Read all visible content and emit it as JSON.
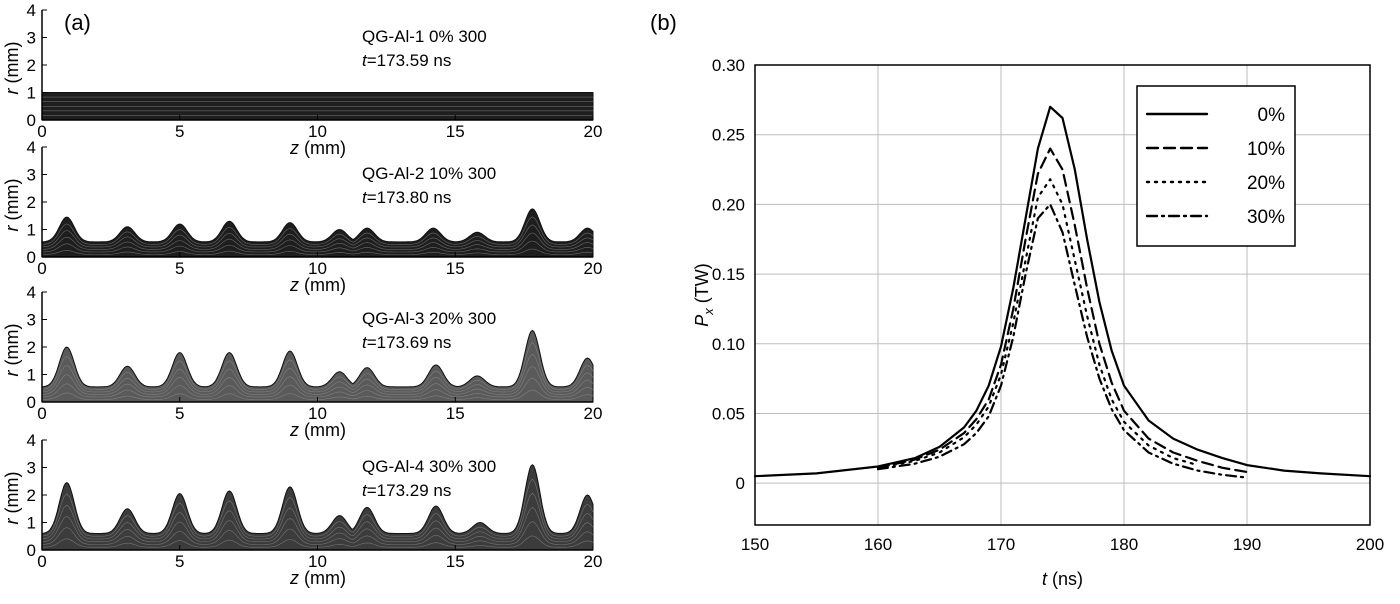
{
  "figure": {
    "panel_a_label": "(a)",
    "panel_b_label": "(b)"
  },
  "chart_data": [
    {
      "type": "area",
      "panel": "(a)",
      "subplots": [
        {
          "run": "QG-Al-1 0% 300",
          "time_prefix": "t",
          "time_value": "=173.59 ns",
          "xlabel_var": "z",
          "xlabel_unit": " (mm)",
          "ylabel_var": "r",
          "ylabel_unit": " (mm)",
          "xlim": [
            0,
            20
          ],
          "ylim": [
            0,
            4
          ],
          "xticks": [
            "0",
            "5",
            "10",
            "15",
            "20"
          ],
          "yticks": [
            "0",
            "1",
            "2",
            "3",
            "4"
          ],
          "fill_color": "#1e1e1e",
          "baseline": 1.0,
          "peaks": []
        },
        {
          "run": "QG-Al-2 10% 300",
          "time_prefix": "t",
          "time_value": "=173.80 ns",
          "xlabel_var": "z",
          "xlabel_unit": " (mm)",
          "ylabel_var": "r",
          "ylabel_unit": " (mm)",
          "xlim": [
            0,
            20
          ],
          "ylim": [
            0,
            4
          ],
          "xticks": [
            "0",
            "5",
            "10",
            "15",
            "20"
          ],
          "yticks": [
            "0",
            "1",
            "2",
            "3",
            "4"
          ],
          "fill_color": "#1e1e1e",
          "baseline": 0.55,
          "peaks": [
            {
              "z": 0.9,
              "r": 1.45
            },
            {
              "z": 3.1,
              "r": 1.1
            },
            {
              "z": 5.0,
              "r": 1.2
            },
            {
              "z": 6.8,
              "r": 1.3
            },
            {
              "z": 9.0,
              "r": 1.25
            },
            {
              "z": 10.8,
              "r": 1.0
            },
            {
              "z": 11.8,
              "r": 1.05
            },
            {
              "z": 14.2,
              "r": 1.05
            },
            {
              "z": 15.8,
              "r": 0.9
            },
            {
              "z": 17.8,
              "r": 1.75
            },
            {
              "z": 19.8,
              "r": 1.05
            }
          ]
        },
        {
          "run": "QG-Al-3 20% 300",
          "time_prefix": "t",
          "time_value": "=173.69 ns",
          "xlabel_var": "z",
          "xlabel_unit": " (mm)",
          "ylabel_var": "r",
          "ylabel_unit": " (mm)",
          "xlim": [
            0,
            20
          ],
          "ylim": [
            0,
            4
          ],
          "xticks": [
            "0",
            "5",
            "10",
            "15",
            "20"
          ],
          "yticks": [
            "0",
            "1",
            "2",
            "3",
            "4"
          ],
          "fill_color": "#5a5a5a",
          "baseline": 0.55,
          "peaks": [
            {
              "z": 0.9,
              "r": 2.0
            },
            {
              "z": 3.1,
              "r": 1.3
            },
            {
              "z": 5.0,
              "r": 1.8
            },
            {
              "z": 6.8,
              "r": 1.8
            },
            {
              "z": 9.0,
              "r": 1.85
            },
            {
              "z": 10.8,
              "r": 1.1
            },
            {
              "z": 11.8,
              "r": 1.25
            },
            {
              "z": 14.3,
              "r": 1.35
            },
            {
              "z": 15.8,
              "r": 0.95
            },
            {
              "z": 17.8,
              "r": 2.6
            },
            {
              "z": 19.8,
              "r": 1.6
            }
          ]
        },
        {
          "run": "QG-Al-4 30% 300",
          "time_prefix": "t",
          "time_value": "=173.29 ns",
          "xlabel_var": "z",
          "xlabel_unit": " (mm)",
          "ylabel_var": "r",
          "ylabel_unit": " (mm)",
          "xlim": [
            0,
            20
          ],
          "ylim": [
            0,
            4
          ],
          "xticks": [
            "0",
            "5",
            "10",
            "15",
            "20"
          ],
          "yticks": [
            "0",
            "1",
            "2",
            "3",
            "4"
          ],
          "fill_color": "#3c3c3c",
          "baseline": 0.6,
          "peaks": [
            {
              "z": 0.9,
              "r": 2.45
            },
            {
              "z": 3.1,
              "r": 1.5
            },
            {
              "z": 5.0,
              "r": 2.05
            },
            {
              "z": 6.8,
              "r": 2.15
            },
            {
              "z": 9.0,
              "r": 2.3
            },
            {
              "z": 10.8,
              "r": 1.25
            },
            {
              "z": 11.8,
              "r": 1.55
            },
            {
              "z": 14.3,
              "r": 1.6
            },
            {
              "z": 15.9,
              "r": 1.0
            },
            {
              "z": 17.8,
              "r": 3.1
            },
            {
              "z": 19.8,
              "r": 2.0
            }
          ]
        }
      ]
    },
    {
      "type": "line",
      "panel": "(b)",
      "xlabel_var": "t",
      "xlabel_unit": " (ns)",
      "ylabel_var": "P",
      "ylabel_sub": "x",
      "ylabel_unit": " (TW)",
      "xlim": [
        150,
        200
      ],
      "ylim": [
        -0.03,
        0.3
      ],
      "xticks": [
        "150",
        "160",
        "170",
        "180",
        "190",
        "200"
      ],
      "yticks": [
        "0",
        "0.05",
        "0.10",
        "0.15",
        "0.20",
        "0.25",
        "0.30"
      ],
      "grid": true,
      "legend_position": "top-right",
      "series": [
        {
          "name": "0%",
          "dash": "solid",
          "x": [
            150,
            155,
            160,
            163,
            165,
            167,
            168,
            169,
            170,
            171,
            172,
            173,
            174,
            175,
            176,
            177,
            178,
            179,
            180,
            182,
            184,
            186,
            188,
            190,
            193,
            196,
            200
          ],
          "y": [
            0.005,
            0.007,
            0.012,
            0.018,
            0.026,
            0.04,
            0.052,
            0.07,
            0.098,
            0.14,
            0.19,
            0.24,
            0.27,
            0.262,
            0.225,
            0.175,
            0.13,
            0.095,
            0.07,
            0.045,
            0.032,
            0.024,
            0.018,
            0.013,
            0.009,
            0.007,
            0.005
          ]
        },
        {
          "name": "10%",
          "dash": "dashed",
          "x": [
            160,
            163,
            165,
            167,
            168,
            169,
            170,
            171,
            172,
            173,
            174,
            175,
            176,
            177,
            178,
            179,
            180,
            182,
            184,
            186,
            188,
            190
          ],
          "y": [
            0.011,
            0.017,
            0.024,
            0.036,
            0.046,
            0.06,
            0.085,
            0.125,
            0.175,
            0.222,
            0.24,
            0.225,
            0.185,
            0.14,
            0.1,
            0.072,
            0.052,
            0.032,
            0.022,
            0.016,
            0.011,
            0.008
          ]
        },
        {
          "name": "20%",
          "dash": "dotted",
          "x": [
            160,
            163,
            165,
            167,
            168,
            169,
            170,
            171,
            172,
            173,
            174,
            175,
            176,
            177,
            178,
            179,
            180,
            182,
            184,
            186
          ],
          "y": [
            0.011,
            0.016,
            0.022,
            0.033,
            0.042,
            0.055,
            0.078,
            0.115,
            0.16,
            0.205,
            0.218,
            0.2,
            0.16,
            0.12,
            0.085,
            0.06,
            0.044,
            0.027,
            0.018,
            0.013
          ]
        },
        {
          "name": "30%",
          "dash": "dashdot",
          "x": [
            160,
            163,
            165,
            167,
            168,
            169,
            170,
            171,
            172,
            173,
            174,
            175,
            176,
            177,
            178,
            179,
            180,
            182,
            184,
            186,
            188,
            190
          ],
          "y": [
            0.01,
            0.014,
            0.019,
            0.028,
            0.036,
            0.048,
            0.07,
            0.105,
            0.15,
            0.19,
            0.2,
            0.18,
            0.142,
            0.105,
            0.075,
            0.053,
            0.038,
            0.022,
            0.014,
            0.009,
            0.006,
            0.004
          ]
        }
      ]
    }
  ]
}
